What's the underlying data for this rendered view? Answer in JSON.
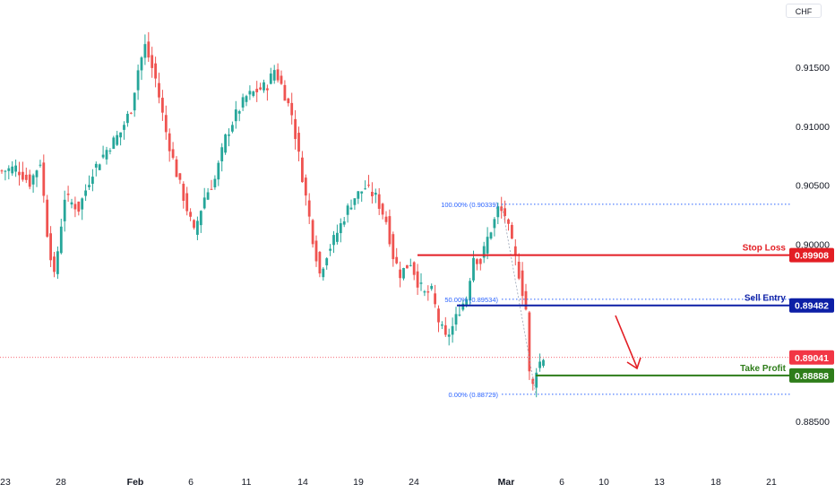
{
  "currency": "CHF",
  "colors": {
    "up": "#26a69a",
    "down": "#ef5350",
    "stop_loss": "#e31e24",
    "sell_entry": "#0d1fa6",
    "take_profit": "#2e7d1a",
    "fib": "#2962ff",
    "current_price": "#f23645",
    "arrow": "#e31e24"
  },
  "chart_data": {
    "type": "candlestick",
    "title": "",
    "ylim": [
      0.8838,
      0.9197
    ],
    "y_ticks": [
      {
        "value": 0.915,
        "label": "0.91500"
      },
      {
        "value": 0.91,
        "label": "0.91000"
      },
      {
        "value": 0.905,
        "label": "0.90500"
      },
      {
        "value": 0.9,
        "label": "0.90000"
      },
      {
        "value": 0.885,
        "label": "0.88500"
      }
    ],
    "x_ticks": [
      {
        "label": "23",
        "bold": false
      },
      {
        "label": "28",
        "bold": false
      },
      {
        "label": "Feb",
        "bold": true
      },
      {
        "label": "6",
        "bold": false
      },
      {
        "label": "11",
        "bold": false
      },
      {
        "label": "14",
        "bold": false
      },
      {
        "label": "19",
        "bold": false
      },
      {
        "label": "24",
        "bold": false
      },
      {
        "label": "Mar",
        "bold": true
      },
      {
        "label": "6",
        "bold": false
      },
      {
        "label": "10",
        "bold": false
      },
      {
        "label": "13",
        "bold": false
      },
      {
        "label": "18",
        "bold": false
      },
      {
        "label": "21",
        "bold": false
      }
    ],
    "anchors": [
      {
        "i": 0,
        "c": 0.9062
      },
      {
        "i": 4,
        "c": 0.9065
      },
      {
        "i": 8,
        "c": 0.9052
      },
      {
        "i": 11,
        "c": 0.907
      },
      {
        "i": 13,
        "c": 0.901
      },
      {
        "i": 15,
        "c": 0.8972
      },
      {
        "i": 18,
        "c": 0.904
      },
      {
        "i": 22,
        "c": 0.903
      },
      {
        "i": 26,
        "c": 0.9062
      },
      {
        "i": 30,
        "c": 0.908
      },
      {
        "i": 34,
        "c": 0.9095
      },
      {
        "i": 37,
        "c": 0.9115
      },
      {
        "i": 39,
        "c": 0.9148
      },
      {
        "i": 41,
        "c": 0.9168
      },
      {
        "i": 44,
        "c": 0.914
      },
      {
        "i": 47,
        "c": 0.9095
      },
      {
        "i": 50,
        "c": 0.906
      },
      {
        "i": 53,
        "c": 0.903
      },
      {
        "i": 55,
        "c": 0.901
      },
      {
        "i": 58,
        "c": 0.904
      },
      {
        "i": 61,
        "c": 0.9055
      },
      {
        "i": 64,
        "c": 0.909
      },
      {
        "i": 67,
        "c": 0.911
      },
      {
        "i": 70,
        "c": 0.9125
      },
      {
        "i": 73,
        "c": 0.913
      },
      {
        "i": 76,
        "c": 0.9135
      },
      {
        "i": 78,
        "c": 0.9148
      },
      {
        "i": 80,
        "c": 0.9135
      },
      {
        "i": 83,
        "c": 0.911
      },
      {
        "i": 85,
        "c": 0.9075
      },
      {
        "i": 87,
        "c": 0.904
      },
      {
        "i": 89,
        "c": 0.9005
      },
      {
        "i": 91,
        "c": 0.8975
      },
      {
        "i": 93,
        "c": 0.8992
      },
      {
        "i": 96,
        "c": 0.901
      },
      {
        "i": 99,
        "c": 0.903
      },
      {
        "i": 101,
        "c": 0.904
      },
      {
        "i": 104,
        "c": 0.9048
      },
      {
        "i": 107,
        "c": 0.904
      },
      {
        "i": 110,
        "c": 0.902
      },
      {
        "i": 112,
        "c": 0.899
      },
      {
        "i": 114,
        "c": 0.8975
      },
      {
        "i": 117,
        "c": 0.8985
      },
      {
        "i": 119,
        "c": 0.8968
      },
      {
        "i": 121,
        "c": 0.8958
      },
      {
        "i": 123,
        "c": 0.896
      },
      {
        "i": 125,
        "c": 0.8935
      },
      {
        "i": 127,
        "c": 0.892
      },
      {
        "i": 129,
        "c": 0.893
      },
      {
        "i": 131,
        "c": 0.8945
      },
      {
        "i": 133,
        "c": 0.8955
      },
      {
        "i": 135,
        "c": 0.899
      },
      {
        "i": 137,
        "c": 0.8985
      },
      {
        "i": 139,
        "c": 0.9005
      },
      {
        "i": 141,
        "c": 0.902
      },
      {
        "i": 142,
        "c": 0.903
      },
      {
        "i": 144,
        "c": 0.9025
      },
      {
        "i": 146,
        "c": 0.9
      },
      {
        "i": 148,
        "c": 0.8975
      },
      {
        "i": 149,
        "c": 0.896
      },
      {
        "i": 150,
        "c": 0.8945
      },
      {
        "i": 151,
        "c": 0.889
      },
      {
        "i": 152,
        "c": 0.888
      },
      {
        "i": 153,
        "c": 0.8895
      },
      {
        "i": 154,
        "c": 0.89
      },
      {
        "i": 155,
        "c": 0.8904
      }
    ],
    "fibonacci": {
      "levels": [
        {
          "label": "100.00% (0.90339)",
          "value": 0.90339
        },
        {
          "label": "50.00% (0.89534)",
          "value": 0.89534
        },
        {
          "label": "0.00% (0.88729)",
          "value": 0.88729
        }
      ]
    },
    "levels": [
      {
        "name": "Stop Loss",
        "value": 0.89908,
        "tag": "0.89908",
        "color_key": "stop_loss"
      },
      {
        "name": "Sell Entry",
        "value": 0.89482,
        "tag": "0.89482",
        "color_key": "sell_entry"
      },
      {
        "name": "Take Profit",
        "value": 0.88888,
        "tag": "0.88888",
        "color_key": "take_profit"
      }
    ],
    "current_price": {
      "value": 0.89041,
      "tag": "0.89041"
    },
    "grid": false
  }
}
